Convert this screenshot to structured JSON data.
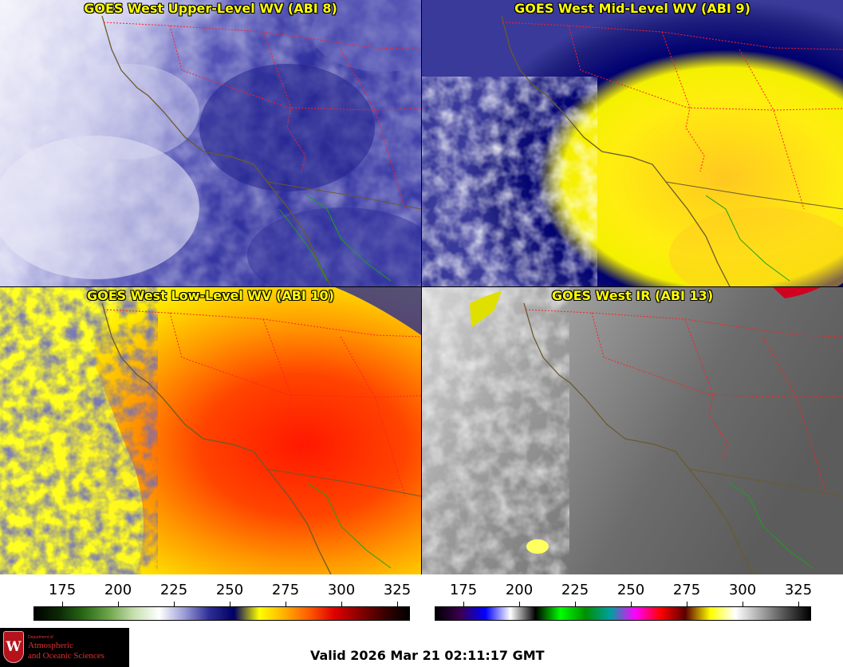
{
  "panels": [
    {
      "title": "GOES West Upper-Level WV (ABI 8)",
      "scheme": "uwv"
    },
    {
      "title": "GOES West Mid-Level WV (ABI 9)",
      "scheme": "mwv"
    },
    {
      "title": "GOES West Low-Level WV (ABI 10)",
      "scheme": "lwv"
    },
    {
      "title": "GOES West IR (ABI 13)",
      "scheme": "ir"
    }
  ],
  "colorbars": {
    "wv": {
      "tick_labels": [
        "175",
        "200",
        "225",
        "250",
        "275",
        "300",
        "325"
      ],
      "range": [
        160,
        330
      ],
      "stops": [
        "#000000",
        "#0c2a05",
        "#2b6a17",
        "#6ea64a",
        "#c8e0b0",
        "#ffffff",
        "#9c9cd6",
        "#2d2d96",
        "#000060",
        "#ffff00",
        "#ffb000",
        "#ff5a00",
        "#e00000",
        "#8a0000",
        "#3a0000",
        "#000000"
      ]
    },
    "ir": {
      "tick_labels": [
        "175",
        "200",
        "225",
        "250",
        "275",
        "300",
        "325"
      ],
      "range": [
        160,
        330
      ],
      "stops": [
        "#000000",
        "#3a0050",
        "#0000ff",
        "#ffffff",
        "#000000",
        "#00ff00",
        "#008f00",
        "#00a0a0",
        "#ff00ff",
        "#ff0000",
        "#5c0000",
        "#ffff00",
        "#ffffff",
        "#a8a8a8",
        "#505050",
        "#000000"
      ]
    }
  },
  "logo": {
    "crest_letter": "W",
    "department": "Department of",
    "line1": "Atmospheric",
    "line2": "and Oceanic Sciences"
  },
  "valid_text": "Valid 2026 Mar 21 02:11:17 GMT",
  "colors": {
    "title_text": "#ffff00",
    "state_borders": "#ff2020",
    "coastline": "#7a5a2a",
    "mexico_coast": "#1aa01a"
  }
}
